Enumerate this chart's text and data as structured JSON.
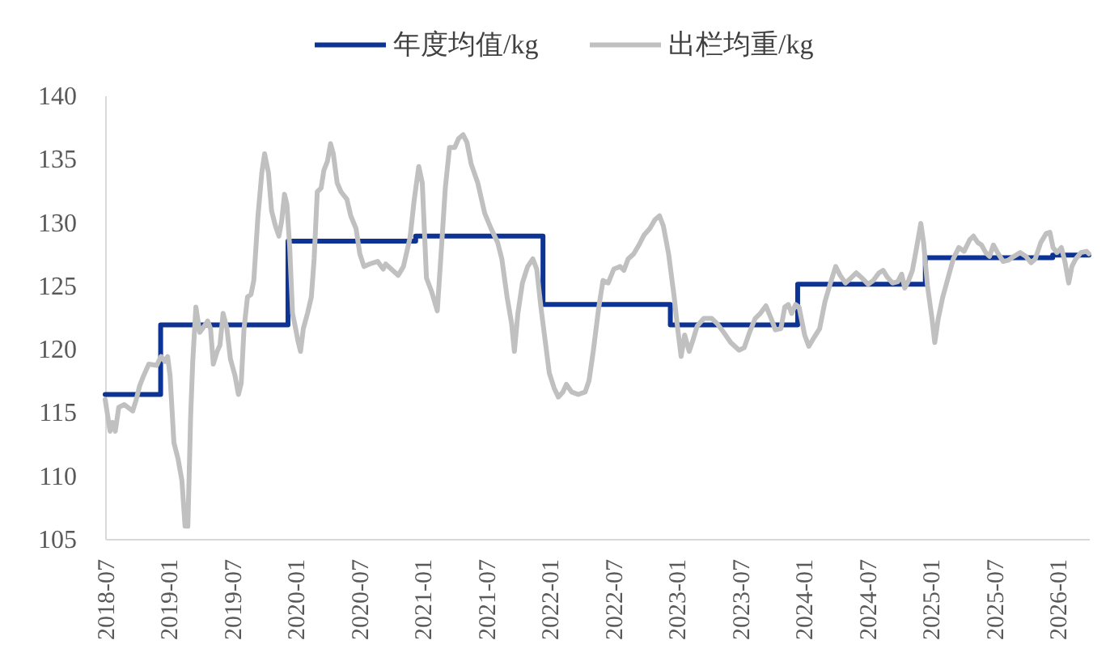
{
  "chart_data": {
    "type": "line",
    "legend": "top",
    "series": [
      {
        "name": "年度均值/kg",
        "type": "step",
        "color": "#0d3394",
        "x": [
          "2018-07-26",
          "2019-01-01",
          "2020-01-01",
          "2021-01-01",
          "2022-01-01",
          "2023-01-01",
          "2024-01-01",
          "2025-01-01",
          "2026-01-01",
          "2026-04-15"
        ],
        "values": [
          116.4,
          121.9,
          128.5,
          128.9,
          123.5,
          121.9,
          125.1,
          127.2,
          127.4,
          127.4
        ]
      },
      {
        "name": "出栏均重/kg",
        "color": "#c0c0c0",
        "x": [
          "2018-07-26",
          "2018-08-09",
          "2018-08-16",
          "2018-08-24",
          "2018-09-03",
          "2018-09-19",
          "2018-10-13",
          "2018-10-23",
          "2018-11-02",
          "2018-11-12",
          "2018-11-28",
          "2018-12-21",
          "2019-01-02",
          "2019-01-13",
          "2019-01-21",
          "2019-01-28",
          "2019-02-08",
          "2019-02-20",
          "2019-03-03",
          "2019-03-12",
          "2019-03-20",
          "2019-03-28",
          "2019-04-03",
          "2019-04-12",
          "2019-04-23",
          "2019-05-06",
          "2019-05-16",
          "2019-05-24",
          "2019-06-01",
          "2019-06-12",
          "2019-06-20",
          "2019-06-29",
          "2019-07-10",
          "2019-07-20",
          "2019-08-02",
          "2019-08-12",
          "2019-08-20",
          "2019-08-28",
          "2019-09-07",
          "2019-09-17",
          "2019-09-25",
          "2019-10-07",
          "2019-10-18",
          "2019-10-26",
          "2019-11-06",
          "2019-11-15",
          "2019-11-26",
          "2019-12-06",
          "2019-12-14",
          "2019-12-22",
          "2019-12-29",
          "2020-01-06",
          "2020-01-14",
          "2020-01-23",
          "2020-01-29",
          "2020-02-06",
          "2020-02-14",
          "2020-02-26",
          "2020-03-08",
          "2020-03-16",
          "2020-03-25",
          "2020-04-05",
          "2020-04-13",
          "2020-04-23",
          "2020-05-02",
          "2020-05-10",
          "2020-05-21",
          "2020-06-01",
          "2020-06-18",
          "2020-06-29",
          "2020-07-14",
          "2020-07-25",
          "2020-08-06",
          "2020-08-22",
          "2020-09-14",
          "2020-09-30",
          "2020-10-07",
          "2020-10-23",
          "2020-11-12",
          "2020-11-27",
          "2020-12-16",
          "2020-12-28",
          "2021-01-10",
          "2021-01-20",
          "2021-02-01",
          "2021-02-16",
          "2021-03-04",
          "2021-03-16",
          "2021-03-27",
          "2021-04-08",
          "2021-04-23",
          "2021-05-04",
          "2021-05-17",
          "2021-05-28",
          "2021-06-09",
          "2021-06-28",
          "2021-07-18",
          "2021-08-05",
          "2021-08-24",
          "2021-09-05",
          "2021-09-20",
          "2021-10-03",
          "2021-10-11",
          "2021-10-21",
          "2021-11-03",
          "2021-11-18",
          "2021-12-03",
          "2021-12-14",
          "2021-12-26",
          "2022-01-07",
          "2022-01-19",
          "2022-02-02",
          "2022-02-14",
          "2022-02-27",
          "2022-03-09",
          "2022-03-24",
          "2022-04-12",
          "2022-05-02",
          "2022-05-13",
          "2022-05-25",
          "2022-06-10",
          "2022-06-22",
          "2022-07-07",
          "2022-07-23",
          "2022-08-10",
          "2022-08-21",
          "2022-09-02",
          "2022-09-18",
          "2022-10-03",
          "2022-10-18",
          "2022-11-03",
          "2022-11-18",
          "2022-12-01",
          "2022-12-12",
          "2022-12-27",
          "2023-01-12",
          "2023-01-22",
          "2023-02-01",
          "2023-02-11",
          "2023-02-24",
          "2023-03-07",
          "2023-03-19",
          "2023-04-07",
          "2023-04-30",
          "2023-05-15",
          "2023-06-03",
          "2023-06-23",
          "2023-07-17",
          "2023-08-01",
          "2023-08-16",
          "2023-09-01",
          "2023-09-16",
          "2023-10-02",
          "2023-10-17",
          "2023-10-29",
          "2023-11-14",
          "2023-11-25",
          "2023-12-05",
          "2023-12-15",
          "2023-12-26",
          "2024-01-05",
          "2024-01-21",
          "2024-02-02",
          "2024-02-17",
          "2024-03-04",
          "2024-03-19",
          "2024-04-04",
          "2024-04-19",
          "2024-05-02",
          "2024-05-17",
          "2024-06-02",
          "2024-06-17",
          "2024-07-03",
          "2024-07-21",
          "2024-08-05",
          "2024-08-21",
          "2024-09-02",
          "2024-09-13",
          "2024-09-29",
          "2024-10-14",
          "2024-10-25",
          "2024-11-03",
          "2024-11-14",
          "2024-11-25",
          "2024-12-07",
          "2024-12-19",
          "2024-12-27",
          "2025-01-07",
          "2025-01-20",
          "2025-01-28",
          "2025-02-07",
          "2025-02-20",
          "2025-03-07",
          "2025-03-22",
          "2025-04-07",
          "2025-04-22",
          "2025-05-08",
          "2025-05-19",
          "2025-05-31",
          "2025-06-11",
          "2025-06-23",
          "2025-07-04",
          "2025-07-15",
          "2025-07-27",
          "2025-08-12",
          "2025-08-27",
          "2025-09-12",
          "2025-09-30",
          "2025-10-16",
          "2025-10-31",
          "2025-11-12",
          "2025-11-28",
          "2025-12-13",
          "2025-12-24",
          "2026-01-02",
          "2026-01-13",
          "2026-01-26",
          "2026-02-05",
          "2026-02-16",
          "2026-02-25",
          "2026-03-08",
          "2026-03-23",
          "2026-04-08",
          "2026-04-15"
        ],
        "values": [
          116.0,
          113.5,
          114.2,
          113.5,
          115.4,
          115.6,
          115.1,
          116.0,
          117.1,
          117.8,
          118.8,
          118.7,
          119.4,
          119.0,
          119.4,
          117.9,
          112.6,
          111.3,
          109.6,
          106.0,
          106.0,
          114.7,
          119.0,
          123.3,
          121.3,
          121.8,
          122.2,
          121.6,
          118.8,
          119.8,
          120.3,
          122.8,
          121.6,
          119.2,
          117.9,
          116.4,
          117.3,
          121.6,
          124.1,
          124.3,
          125.4,
          130.5,
          133.9,
          135.4,
          133.9,
          130.9,
          129.7,
          128.9,
          130.1,
          132.2,
          131.4,
          128.0,
          122.8,
          121.6,
          120.7,
          119.8,
          121.6,
          122.8,
          124.1,
          127.1,
          132.4,
          132.7,
          134.1,
          134.8,
          136.2,
          135.4,
          133.1,
          132.4,
          131.8,
          130.5,
          129.5,
          127.5,
          126.5,
          126.7,
          126.9,
          126.3,
          126.7,
          126.3,
          125.8,
          126.5,
          128.8,
          131.8,
          134.4,
          133.1,
          125.6,
          124.5,
          123.0,
          128.0,
          132.7,
          135.9,
          135.9,
          136.6,
          136.9,
          136.3,
          134.6,
          133.1,
          130.7,
          129.5,
          128.4,
          127.1,
          124.1,
          122.0,
          119.8,
          122.8,
          125.2,
          126.5,
          127.1,
          126.3,
          123.3,
          120.7,
          118.1,
          116.9,
          116.2,
          116.6,
          117.2,
          116.6,
          116.4,
          116.6,
          117.5,
          119.8,
          123.3,
          125.4,
          125.2,
          126.3,
          126.5,
          126.2,
          127.1,
          127.5,
          128.2,
          129.0,
          129.5,
          130.2,
          130.5,
          129.7,
          127.5,
          124.1,
          121.6,
          119.4,
          121.1,
          119.8,
          120.7,
          121.8,
          122.4,
          122.4,
          122.0,
          121.3,
          120.5,
          119.9,
          120.1,
          121.3,
          122.4,
          122.8,
          123.4,
          122.4,
          121.5,
          121.6,
          123.3,
          123.5,
          122.8,
          123.5,
          123.3,
          121.1,
          120.2,
          120.9,
          121.6,
          123.7,
          125.2,
          126.5,
          125.8,
          125.2,
          125.6,
          126.0,
          125.6,
          125.1,
          125.4,
          126.0,
          126.2,
          125.7,
          125.2,
          125.3,
          125.9,
          124.8,
          125.4,
          126.2,
          128.0,
          129.9,
          128.4,
          125.0,
          122.4,
          120.5,
          122.4,
          124.1,
          125.6,
          127.1,
          128.0,
          127.7,
          128.6,
          128.9,
          128.4,
          128.2,
          127.6,
          127.3,
          128.2,
          127.6,
          126.9,
          127.0,
          127.3,
          127.6,
          127.3,
          126.8,
          127.1,
          128.4,
          129.1,
          129.2,
          128.0,
          127.6,
          128.0,
          126.9,
          125.2,
          126.5,
          127.1,
          127.6,
          127.7,
          127.5
        ]
      }
    ],
    "xlim": [
      "2018-07-26",
      "2026-04-15"
    ],
    "xticks": [
      {
        "value": "2018-07-26",
        "label": "2018-07"
      },
      {
        "value": "2019-01-24",
        "label": "2019-01"
      },
      {
        "value": "2019-07-25",
        "label": "2019-07"
      },
      {
        "value": "2020-01-23",
        "label": "2020-01"
      },
      {
        "value": "2020-07-23",
        "label": "2020-07"
      },
      {
        "value": "2021-01-21",
        "label": "2021-01"
      },
      {
        "value": "2021-07-22",
        "label": "2021-07"
      },
      {
        "value": "2022-01-20",
        "label": "2022-01"
      },
      {
        "value": "2022-07-21",
        "label": "2022-07"
      },
      {
        "value": "2023-01-19",
        "label": "2023-01"
      },
      {
        "value": "2023-07-20",
        "label": "2023-07"
      },
      {
        "value": "2024-01-18",
        "label": "2024-01"
      },
      {
        "value": "2024-07-18",
        "label": "2024-07"
      },
      {
        "value": "2025-01-16",
        "label": "2025-01"
      },
      {
        "value": "2025-07-17",
        "label": "2025-07"
      },
      {
        "value": "2026-01-15",
        "label": "2026-01"
      }
    ],
    "ylim": [
      105,
      140
    ],
    "yticks": [
      105,
      110,
      115,
      120,
      125,
      130,
      135,
      140
    ]
  }
}
